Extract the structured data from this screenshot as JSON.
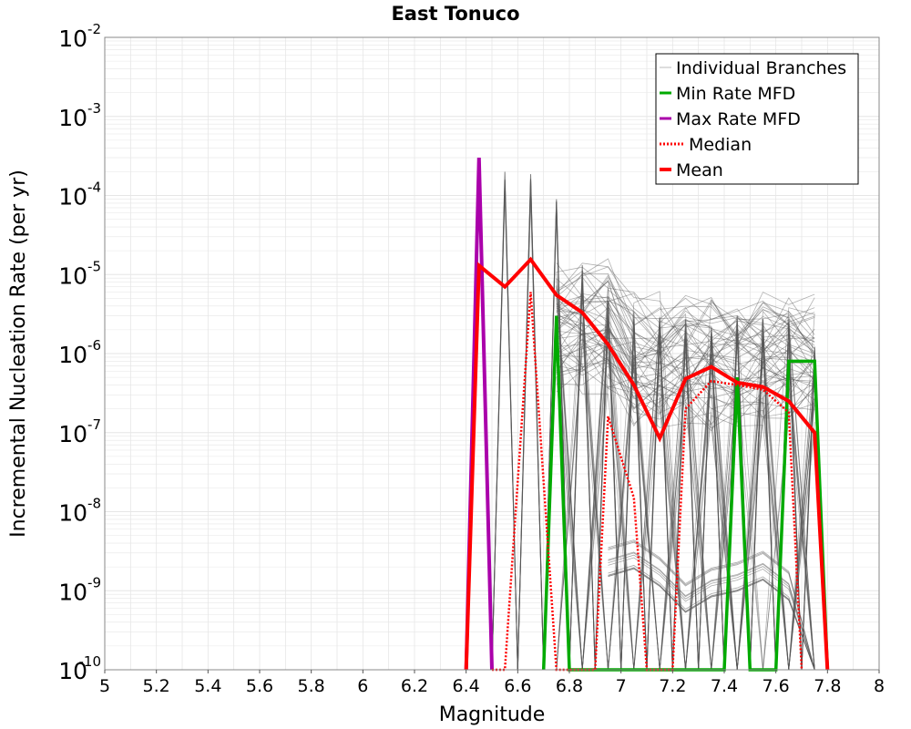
{
  "chart_data": {
    "type": "line",
    "title": "East Tonuco",
    "xlabel": "Magnitude",
    "ylabel": "Incremental Nucleation Rate (per yr)",
    "xlim": [
      5,
      8
    ],
    "ylim": [
      1e-10,
      0.01
    ],
    "y_scale": "log",
    "grid": true,
    "legend_position": "top-right",
    "x_ticks": [
      "5",
      "5.2",
      "5.4",
      "5.6",
      "5.8",
      "6",
      "6.2",
      "6.4",
      "6.6",
      "6.8",
      "7",
      "7.2",
      "7.4",
      "7.6",
      "7.8",
      "8"
    ],
    "y_tick_exponents": [
      "-10",
      "-9",
      "-8",
      "-7",
      "-6",
      "-5",
      "-4",
      "-3",
      "-2"
    ],
    "y_tick_base": "10",
    "legend": [
      {
        "label": "Individual Branches",
        "color": "#bbbbbb",
        "style": "solid"
      },
      {
        "label": "Min Rate MFD",
        "color": "#00aa00",
        "style": "solid"
      },
      {
        "label": "Max Rate MFD",
        "color": "#aa00aa",
        "style": "solid"
      },
      {
        "label": "Median",
        "color": "#ff0000",
        "style": "dotted"
      },
      {
        "label": "Mean",
        "color": "#ff0000",
        "style": "solid"
      }
    ],
    "colors": {
      "branches": "#555555",
      "min": "#00aa00",
      "max": "#aa00aa",
      "median": "#ff0000",
      "mean": "#ff0000",
      "grid": "#e6e6e6"
    },
    "series": [
      {
        "name": "Mean",
        "x": [
          6.45,
          6.55,
          6.65,
          6.75,
          6.85,
          6.95,
          7.05,
          7.15,
          7.25,
          7.35,
          7.45,
          7.55,
          7.65,
          7.75
        ],
        "y": [
          1.3e-05,
          7e-06,
          1.55e-05,
          5.5e-06,
          3.3e-06,
          1.3e-06,
          4e-07,
          8.5e-08,
          4.8e-07,
          6.8e-07,
          4.3e-07,
          3.8e-07,
          2.5e-07,
          1e-07
        ]
      },
      {
        "name": "Median",
        "x": [
          6.55,
          6.65,
          6.75,
          6.95,
          7.05,
          7.25,
          7.35,
          7.45,
          7.55,
          7.65
        ],
        "y": [
          1e-10,
          6e-06,
          1e-10,
          1.6e-07,
          1.5e-08,
          2e-07,
          4.5e-07,
          4e-07,
          3.5e-07,
          1.8e-07
        ]
      },
      {
        "name": "Min Rate MFD",
        "x": [
          6.75,
          7.45,
          7.65,
          7.75
        ],
        "y": [
          3e-06,
          5e-07,
          8e-07,
          8e-07
        ]
      },
      {
        "name": "Max Rate MFD",
        "x": [
          6.45
        ],
        "y": [
          0.0003
        ]
      }
    ],
    "individual_branch_peaks": {
      "x": [
        6.55,
        6.65,
        6.75,
        6.85,
        6.95,
        7.05,
        7.15,
        7.25,
        7.35,
        7.45,
        7.55,
        7.65,
        7.75
      ],
      "y": [
        0.0002,
        0.0002,
        0.0001,
        1.5e-05,
        5e-06,
        4e-06,
        3e-06,
        3e-06,
        3e-06,
        3e-06,
        3e-06,
        3e-06,
        1.5e-06
      ]
    }
  }
}
